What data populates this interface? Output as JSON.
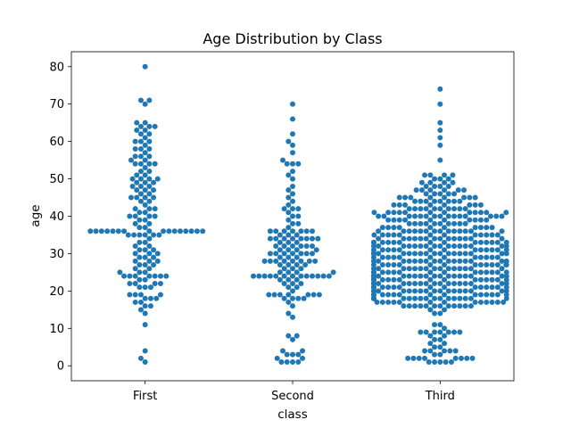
{
  "chart_data": {
    "type": "scatter",
    "subtype": "swarm",
    "title": "Age Distribution by Class",
    "xlabel": "class",
    "ylabel": "age",
    "categories": [
      "First",
      "Second",
      "Third"
    ],
    "ylim": [
      -4,
      84
    ],
    "yticks": [
      0,
      10,
      20,
      30,
      40,
      50,
      60,
      70,
      80
    ],
    "grid": false,
    "color": "#1f77b4",
    "series": [
      {
        "category": "First",
        "values": [
          1,
          2,
          4,
          11,
          14,
          15,
          16,
          16,
          17,
          17,
          18,
          18,
          18,
          19,
          19,
          19,
          19,
          21,
          21,
          21,
          22,
          22,
          22,
          22,
          23,
          23,
          24,
          24,
          24,
          24,
          24,
          24,
          24,
          25,
          25,
          25,
          26,
          26,
          27,
          27,
          27,
          28,
          28,
          28,
          29,
          29,
          29,
          30,
          30,
          30,
          31,
          31,
          31,
          32,
          32,
          33,
          33,
          34,
          35,
          35,
          35,
          35,
          35,
          35,
          36,
          36,
          36,
          36,
          36,
          36,
          36,
          36,
          36,
          36,
          36,
          36,
          36,
          36,
          36,
          36,
          37,
          37,
          38,
          38,
          39,
          39,
          40,
          40,
          40,
          40,
          41,
          41,
          42,
          42,
          42,
          43,
          44,
          44,
          45,
          45,
          45,
          45,
          46,
          46,
          47,
          47,
          47,
          48,
          48,
          48,
          49,
          49,
          49,
          50,
          50,
          50,
          50,
          51,
          51,
          52,
          52,
          53,
          54,
          54,
          54,
          54,
          55,
          55,
          56,
          56,
          56,
          57,
          58,
          58,
          58,
          59,
          60,
          60,
          60,
          61,
          62,
          62,
          63,
          63,
          64,
          64,
          64,
          65,
          65,
          70,
          71,
          71,
          80
        ]
      },
      {
        "category": "Second",
        "values": [
          1,
          1,
          1,
          1,
          2,
          2,
          3,
          3,
          3,
          4,
          4,
          7,
          8,
          8,
          13,
          14,
          16,
          17,
          18,
          18,
          18,
          18,
          19,
          19,
          19,
          19,
          19,
          19,
          19,
          20,
          21,
          21,
          22,
          22,
          22,
          23,
          23,
          23,
          24,
          24,
          24,
          24,
          24,
          24,
          24,
          24,
          24,
          24,
          24,
          24,
          24,
          25,
          25,
          25,
          25,
          26,
          26,
          26,
          27,
          27,
          27,
          27,
          28,
          28,
          28,
          28,
          28,
          28,
          28,
          28,
          29,
          29,
          29,
          30,
          30,
          30,
          30,
          30,
          30,
          30,
          31,
          31,
          31,
          31,
          32,
          32,
          32,
          32,
          32,
          32,
          33,
          33,
          33,
          34,
          34,
          34,
          34,
          34,
          34,
          34,
          34,
          35,
          35,
          35,
          36,
          36,
          36,
          36,
          36,
          36,
          36,
          37,
          38,
          38,
          39,
          40,
          40,
          41,
          42,
          42,
          42,
          43,
          44,
          45,
          46,
          47,
          48,
          50,
          51,
          52,
          54,
          54,
          54,
          55,
          57,
          59,
          60,
          62,
          66,
          70
        ]
      },
      {
        "category": "Third",
        "values": [
          1,
          1,
          1,
          1,
          1,
          2,
          2,
          2,
          2,
          2,
          2,
          2,
          2,
          3,
          3,
          4,
          4,
          4,
          4,
          4,
          5,
          5,
          6,
          6,
          7,
          7,
          8,
          8,
          9,
          9,
          9,
          9,
          9,
          9,
          9,
          10,
          11,
          11,
          14,
          14,
          15,
          15,
          16,
          16,
          16,
          16,
          16,
          16,
          16,
          16,
          16,
          16,
          16,
          16,
          17,
          17,
          17,
          17,
          17,
          17,
          17,
          17,
          17,
          17,
          17,
          17,
          17,
          18,
          18,
          18,
          18,
          18,
          18,
          18,
          18,
          18,
          18,
          18,
          18,
          18,
          18,
          18,
          18,
          18,
          18,
          18,
          19,
          19,
          19,
          19,
          19,
          19,
          19,
          19,
          19,
          19,
          19,
          19,
          19,
          19,
          19,
          19,
          19,
          20,
          20,
          20,
          20,
          20,
          20,
          20,
          20,
          20,
          20,
          20,
          20,
          20,
          20,
          20,
          20,
          20,
          20,
          21,
          21,
          21,
          21,
          21,
          21,
          21,
          21,
          21,
          21,
          21,
          21,
          21,
          21,
          21,
          21,
          21,
          21,
          22,
          22,
          22,
          22,
          22,
          22,
          22,
          22,
          22,
          22,
          22,
          22,
          22,
          22,
          22,
          22,
          22,
          22,
          22,
          22,
          22,
          23,
          23,
          23,
          23,
          23,
          23,
          23,
          23,
          23,
          23,
          23,
          23,
          23,
          23,
          23,
          23,
          23,
          24,
          24,
          24,
          24,
          24,
          24,
          24,
          24,
          24,
          24,
          24,
          24,
          24,
          24,
          24,
          24,
          24,
          24,
          24,
          24,
          24,
          24,
          24,
          24,
          25,
          25,
          25,
          25,
          25,
          25,
          25,
          25,
          25,
          25,
          25,
          25,
          25,
          25,
          25,
          25,
          26,
          26,
          26,
          26,
          26,
          26,
          26,
          26,
          26,
          26,
          26,
          26,
          26,
          26,
          26,
          27,
          27,
          27,
          27,
          27,
          27,
          27,
          27,
          27,
          27,
          27,
          27,
          27,
          27,
          28,
          28,
          28,
          28,
          28,
          28,
          28,
          28,
          28,
          28,
          28,
          28,
          28,
          28,
          28,
          28,
          29,
          29,
          29,
          29,
          29,
          29,
          29,
          29,
          29,
          29,
          29,
          29,
          30,
          30,
          30,
          30,
          30,
          30,
          30,
          30,
          30,
          30,
          30,
          30,
          30,
          30,
          30,
          30,
          30,
          30,
          30,
          30,
          31,
          31,
          31,
          31,
          31,
          31,
          31,
          31,
          31,
          31,
          31,
          31,
          31,
          32,
          32,
          32,
          32,
          32,
          32,
          32,
          32,
          32,
          32,
          32,
          32,
          32,
          32,
          32,
          32,
          33,
          33,
          33,
          33,
          33,
          33,
          33,
          33,
          33,
          33,
          33,
          33,
          33,
          33,
          33,
          33,
          34,
          34,
          34,
          34,
          34,
          34,
          34,
          34,
          34,
          34,
          34,
          34,
          34,
          34,
          35,
          35,
          35,
          35,
          35,
          35,
          35,
          35,
          35,
          35,
          35,
          35,
          36,
          36,
          36,
          36,
          36,
          36,
          36,
          36,
          36,
          36,
          36,
          36,
          36,
          36,
          37,
          37,
          37,
          37,
          37,
          37,
          37,
          37,
          37,
          37,
          38,
          38,
          38,
          38,
          38,
          38,
          38,
          38,
          38,
          38,
          39,
          39,
          39,
          39,
          39,
          39,
          39,
          39,
          39,
          39,
          40,
          40,
          40,
          40,
          40,
          40,
          40,
          40,
          40,
          40,
          40,
          40,
          40,
          40,
          40,
          41,
          41,
          41,
          41,
          41,
          41,
          41,
          41,
          41,
          41,
          41,
          41,
          42,
          42,
          42,
          42,
          42,
          42,
          42,
          42,
          42,
          42,
          43,
          43,
          43,
          43,
          43,
          43,
          43,
          43,
          44,
          44,
          44,
          44,
          44,
          44,
          44,
          44,
          45,
          45,
          45,
          45,
          45,
          45,
          45,
          45,
          46,
          46,
          46,
          46,
          46,
          47,
          47,
          47,
          47,
          47,
          47,
          48,
          48,
          48,
          48,
          49,
          49,
          49,
          49,
          50,
          50,
          50,
          51,
          51,
          51,
          51,
          55,
          59,
          61,
          63,
          65,
          70,
          74
        ]
      }
    ]
  }
}
